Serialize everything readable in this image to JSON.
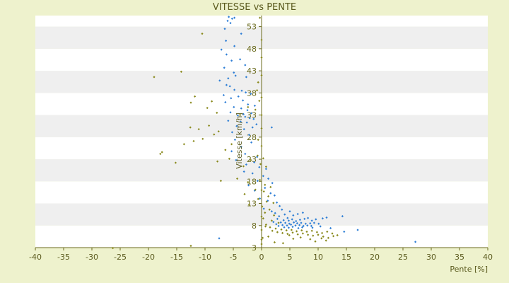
{
  "chart_data": {
    "type": "scatter",
    "title": "VITESSE vs PENTE",
    "xlabel": "Pente [%]",
    "ylabel": "Vitesse [km/h]",
    "xlim": [
      -40,
      40
    ],
    "ylim": [
      3,
      55.5
    ],
    "x_ticks": [
      -40,
      -35,
      -30,
      -25,
      -20,
      -15,
      -10,
      -5,
      0,
      5,
      10,
      15,
      20,
      25,
      30,
      35,
      40
    ],
    "y_ticks": [
      3,
      8,
      13,
      18,
      23,
      28,
      33,
      38,
      43,
      48,
      53
    ],
    "grid": "horizontal bands",
    "legend": "none",
    "colors": {
      "background": "#eef2cd",
      "plot_band_light": "#ffffff",
      "plot_band_dark": "#efefef",
      "axis": "#6b6b1e",
      "series_a": "#2f7fd6",
      "series_b": "#8a8a1e"
    },
    "series": [
      {
        "color": "#2f7fd6",
        "points": [
          [
            -5.8,
            55.2
          ],
          [
            -5.2,
            54.8
          ],
          [
            -6.0,
            54.3
          ],
          [
            -4.8,
            55.0
          ],
          [
            -5.5,
            53.8
          ],
          [
            -6.5,
            52.5
          ],
          [
            -3.6,
            51.4
          ],
          [
            -6.3,
            49.8
          ],
          [
            -4.8,
            48.6
          ],
          [
            -7.1,
            47.8
          ],
          [
            -6.2,
            46.7
          ],
          [
            -5.3,
            45.3
          ],
          [
            -3.8,
            45.6
          ],
          [
            -2.9,
            44.3
          ],
          [
            -6.6,
            43.7
          ],
          [
            -4.9,
            42.6
          ],
          [
            -4.6,
            41.9
          ],
          [
            -5.9,
            41.3
          ],
          [
            -2.7,
            41.6
          ],
          [
            -7.4,
            40.8
          ],
          [
            -6.2,
            39.8
          ],
          [
            -5.6,
            39.5
          ],
          [
            -4.8,
            38.7
          ],
          [
            -3.5,
            38.5
          ],
          [
            -2.8,
            38.1
          ],
          [
            -1.9,
            37.8
          ],
          [
            -6.7,
            37.5
          ],
          [
            -4.1,
            37.2
          ],
          [
            -5.4,
            36.8
          ],
          [
            -3.3,
            36.3
          ],
          [
            -6.4,
            35.9
          ],
          [
            -2.4,
            35.4
          ],
          [
            -1.2,
            35.1
          ],
          [
            -4.9,
            34.8
          ],
          [
            -3.6,
            34.5
          ],
          [
            -2.5,
            34.1
          ],
          [
            -5.5,
            33.6
          ],
          [
            -1.8,
            33.4
          ],
          [
            -3.2,
            33.2
          ],
          [
            -4.2,
            32.9
          ],
          [
            -2.9,
            32.6
          ],
          [
            -2.1,
            32.3
          ],
          [
            -1.4,
            32.1
          ],
          [
            -5.9,
            31.7
          ],
          [
            -3.7,
            31.5
          ],
          [
            -2.6,
            31.3
          ],
          [
            -0.9,
            30.9
          ],
          [
            -4.4,
            30.5
          ],
          [
            -1.6,
            30.2
          ],
          [
            -3.1,
            29.8
          ],
          [
            -5.2,
            29.1
          ],
          [
            -2.2,
            28.5
          ],
          [
            -4.7,
            27.4
          ],
          [
            -1.8,
            26.8
          ],
          [
            1.8,
            30.2
          ],
          [
            -3.6,
            25.8
          ],
          [
            -5.3,
            24.8
          ],
          [
            -2.9,
            24.2
          ],
          [
            -0.8,
            23.5
          ],
          [
            -4.5,
            22.8
          ],
          [
            -1.3,
            22.3
          ],
          [
            -2.7,
            21.8
          ],
          [
            -0.4,
            21.2
          ],
          [
            0.8,
            20.8
          ],
          [
            -3.1,
            20.2
          ],
          [
            -1.6,
            19.8
          ],
          [
            0.3,
            19.2
          ],
          [
            1.2,
            18.6
          ],
          [
            -0.7,
            18.1
          ],
          [
            1.9,
            17.6
          ],
          [
            -2.3,
            17.1
          ],
          [
            0.6,
            16.5
          ],
          [
            -1.2,
            15.9
          ],
          [
            1.6,
            15.3
          ],
          [
            2.3,
            14.8
          ],
          [
            -0.3,
            14.1
          ],
          [
            1.1,
            13.6
          ],
          [
            2.7,
            13.2
          ],
          [
            3.2,
            12.4
          ],
          [
            0.4,
            11.8
          ],
          [
            1.8,
            11.2
          ],
          [
            3.6,
            11.6
          ],
          [
            2.4,
            10.8
          ],
          [
            4.1,
            10.5
          ],
          [
            5.0,
            11.2
          ],
          [
            3.1,
            10.1
          ],
          [
            4.6,
            9.7
          ],
          [
            5.6,
            10.3
          ],
          [
            6.4,
            10.6
          ],
          [
            7.3,
            10.9
          ],
          [
            2.8,
            9.5
          ],
          [
            3.9,
            9.2
          ],
          [
            4.8,
            9.1
          ],
          [
            5.4,
            9.4
          ],
          [
            6.1,
            9.0
          ],
          [
            6.8,
            9.3
          ],
          [
            7.6,
            9.5
          ],
          [
            8.2,
            9.7
          ],
          [
            8.9,
            9.1
          ],
          [
            9.6,
            9.4
          ],
          [
            10.8,
            9.6
          ],
          [
            11.5,
            9.8
          ],
          [
            14.3,
            10.1
          ],
          [
            3.4,
            8.7
          ],
          [
            4.2,
            8.6
          ],
          [
            4.9,
            8.4
          ],
          [
            5.7,
            8.7
          ],
          [
            6.3,
            8.5
          ],
          [
            7.0,
            8.6
          ],
          [
            7.8,
            8.4
          ],
          [
            8.6,
            8.5
          ],
          [
            9.3,
            8.6
          ],
          [
            10.1,
            8.4
          ],
          [
            3.7,
            8.1
          ],
          [
            4.5,
            8.0
          ],
          [
            5.2,
            8.2
          ],
          [
            6.0,
            8.0
          ],
          [
            6.7,
            8.1
          ],
          [
            7.4,
            7.9
          ],
          [
            8.1,
            8.0
          ],
          [
            8.8,
            7.9
          ],
          [
            10.4,
            7.8
          ],
          [
            4.0,
            7.6
          ],
          [
            4.8,
            7.5
          ],
          [
            5.5,
            7.7
          ],
          [
            6.5,
            7.4
          ],
          [
            7.2,
            7.6
          ],
          [
            9.0,
            7.5
          ],
          [
            12.2,
            7.4
          ],
          [
            14.6,
            6.6
          ],
          [
            17.0,
            7.0
          ],
          [
            27.2,
            4.3
          ],
          [
            -7.5,
            5.1
          ],
          [
            2.1,
            8.8
          ],
          [
            2.6,
            8.3
          ],
          [
            3.0,
            7.9
          ]
        ]
      },
      {
        "color": "#8a8a1e",
        "points": [
          [
            -0.3,
            55.0
          ],
          [
            -10.5,
            51.4
          ],
          [
            -14.2,
            42.8
          ],
          [
            -19.0,
            41.6
          ],
          [
            -0.6,
            40.4
          ],
          [
            -11.8,
            37.2
          ],
          [
            -0.8,
            38.6
          ],
          [
            -12.5,
            35.8
          ],
          [
            -8.8,
            36.1
          ],
          [
            -9.6,
            34.6
          ],
          [
            -7.9,
            33.5
          ],
          [
            -2.4,
            34.8
          ],
          [
            -3.8,
            33.0
          ],
          [
            -1.1,
            34.2
          ],
          [
            -0.4,
            36.2
          ],
          [
            -9.3,
            30.6
          ],
          [
            -11.1,
            29.8
          ],
          [
            -12.6,
            30.2
          ],
          [
            -7.6,
            29.3
          ],
          [
            -8.4,
            28.6
          ],
          [
            -10.4,
            27.6
          ],
          [
            -13.7,
            26.4
          ],
          [
            -12.0,
            27.1
          ],
          [
            -0.6,
            27.4
          ],
          [
            -17.9,
            24.2
          ],
          [
            -17.6,
            24.6
          ],
          [
            -15.2,
            22.2
          ],
          [
            -7.8,
            22.5
          ],
          [
            -5.7,
            23.1
          ],
          [
            -3.2,
            21.4
          ],
          [
            -1.9,
            22.8
          ],
          [
            -0.7,
            23.8
          ],
          [
            0.3,
            23.2
          ],
          [
            -0.2,
            21.9
          ],
          [
            0.8,
            21.3
          ],
          [
            -7.2,
            18.1
          ],
          [
            -4.3,
            18.6
          ],
          [
            -2.4,
            17.8
          ],
          [
            -0.3,
            18.3
          ],
          [
            0.6,
            17.2
          ],
          [
            1.6,
            16.7
          ],
          [
            -1.1,
            16.1
          ],
          [
            0.4,
            15.7
          ],
          [
            -3.0,
            15.1
          ],
          [
            1.2,
            14.6
          ],
          [
            -0.6,
            14.0
          ],
          [
            0.9,
            13.4
          ],
          [
            2.1,
            13.1
          ],
          [
            -2.2,
            12.7
          ],
          [
            0.1,
            12.3
          ],
          [
            1.4,
            11.6
          ],
          [
            0.6,
            10.9
          ],
          [
            2.2,
            10.3
          ],
          [
            0.3,
            9.6
          ],
          [
            1.8,
            9.1
          ],
          [
            3.0,
            8.6
          ],
          [
            0.8,
            8.2
          ],
          [
            1.5,
            7.6
          ],
          [
            2.5,
            7.3
          ],
          [
            3.5,
            7.1
          ],
          [
            4.4,
            6.9
          ],
          [
            5.3,
            7.0
          ],
          [
            6.2,
            6.7
          ],
          [
            7.1,
            6.9
          ],
          [
            8.0,
            6.6
          ],
          [
            8.9,
            6.8
          ],
          [
            9.8,
            6.5
          ],
          [
            10.7,
            6.3
          ],
          [
            11.6,
            6.6
          ],
          [
            12.5,
            6.2
          ],
          [
            13.4,
            5.8
          ],
          [
            0.7,
            7.8
          ],
          [
            1.9,
            6.8
          ],
          [
            2.8,
            6.5
          ],
          [
            3.7,
            6.3
          ],
          [
            4.6,
            6.1
          ],
          [
            5.5,
            6.4
          ],
          [
            6.4,
            6.0
          ],
          [
            7.3,
            6.2
          ],
          [
            8.2,
            5.9
          ],
          [
            9.1,
            5.7
          ],
          [
            10.0,
            5.9
          ],
          [
            10.9,
            5.5
          ],
          [
            11.8,
            5.2
          ],
          [
            12.7,
            5.6
          ],
          [
            0.2,
            5.2
          ],
          [
            1.2,
            5.5
          ],
          [
            2.3,
            4.2
          ],
          [
            3.8,
            4.0
          ],
          [
            5.6,
            5.0
          ],
          [
            6.9,
            5.3
          ],
          [
            8.6,
            4.9
          ],
          [
            9.5,
            4.4
          ],
          [
            10.6,
            5.1
          ],
          [
            11.4,
            4.6
          ],
          [
            4.9,
            5.8
          ],
          [
            -26.3,
            2.9
          ],
          [
            -12.5,
            3.4
          ],
          [
            0.0,
            4.8
          ],
          [
            0.0,
            3.8
          ],
          [
            0.0,
            7.0
          ],
          [
            0.0,
            10.0
          ],
          [
            0.0,
            16.0
          ],
          [
            0.0,
            26.0
          ],
          [
            0.0,
            30.0
          ],
          [
            0.0,
            33.0
          ],
          [
            0.0,
            37.0
          ],
          [
            0.0,
            42.0
          ],
          [
            0.0,
            46.0
          ],
          [
            0.0,
            50.0
          ],
          [
            -5.3,
            26.4
          ],
          [
            -6.4,
            25.1
          ]
        ]
      }
    ]
  }
}
